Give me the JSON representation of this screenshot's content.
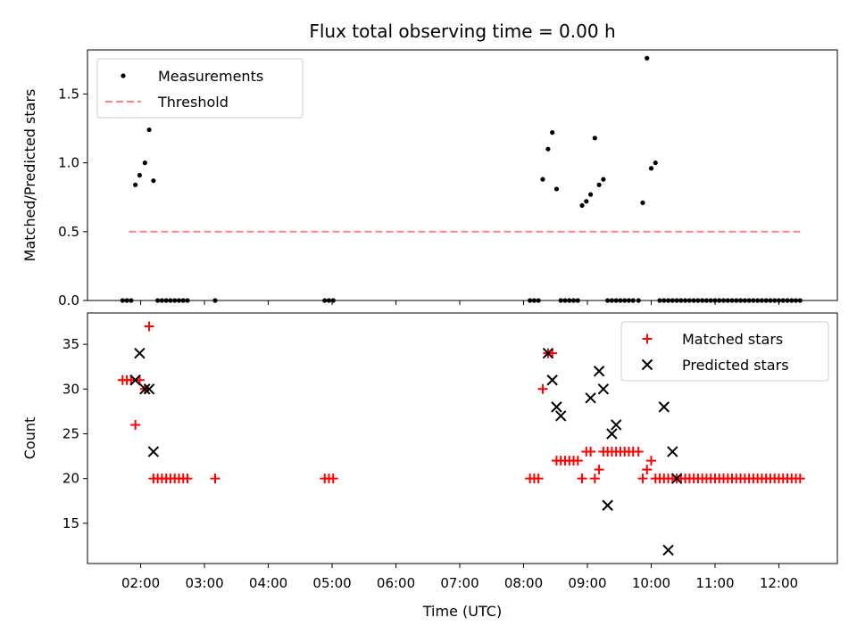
{
  "title": "Flux total observing time = 0.00 h",
  "chart_data": [
    {
      "type": "scatter",
      "ylabel": "Matched/Predicted stars",
      "xlabel": "",
      "ylim": [
        0,
        1.82
      ],
      "yticks": [
        0.0,
        0.5,
        1.0,
        1.5
      ],
      "ytick_labels": [
        "0.0",
        "0.5",
        "1.0",
        "1.5"
      ],
      "legend": {
        "position": "top-left",
        "entries": [
          "Measurements",
          "Threshold"
        ]
      },
      "series": [
        {
          "name": "Measurements",
          "color": "#000000",
          "marker": "dot",
          "x": [
            "01:43",
            "01:47",
            "01:51",
            "01:55",
            "01:59",
            "02:04",
            "02:08",
            "02:12",
            "02:16",
            "02:20",
            "02:24",
            "02:28",
            "02:32",
            "02:36",
            "02:40",
            "02:44",
            "03:10",
            "04:53",
            "04:57",
            "05:01",
            "08:06",
            "08:10",
            "08:14",
            "08:18",
            "08:23",
            "08:27",
            "08:31",
            "08:35",
            "08:39",
            "08:43",
            "08:47",
            "08:51",
            "08:55",
            "08:59",
            "09:03",
            "09:07",
            "09:11",
            "09:15",
            "09:19",
            "09:23",
            "09:27",
            "09:31",
            "09:35",
            "09:39",
            "09:43",
            "09:48",
            "09:52",
            "09:56",
            "10:00",
            "10:04",
            "10:08",
            "10:12",
            "10:16",
            "10:20",
            "10:24",
            "10:28",
            "10:32",
            "10:36",
            "10:40",
            "10:44",
            "10:48",
            "10:52",
            "10:56",
            "11:00",
            "11:04",
            "11:08",
            "11:12",
            "11:16",
            "11:20",
            "11:24",
            "11:28",
            "11:32",
            "11:36",
            "11:40",
            "11:44",
            "11:48",
            "11:52",
            "11:56",
            "12:00",
            "12:04",
            "12:08",
            "12:12",
            "12:16",
            "12:20"
          ],
          "y": [
            0,
            0,
            0,
            0.84,
            0.91,
            1.0,
            1.24,
            0.87,
            0,
            0,
            0,
            0,
            0,
            0,
            0,
            0,
            0,
            0,
            0,
            0,
            0,
            0,
            0,
            0.88,
            1.1,
            1.22,
            0.81,
            0,
            0,
            0,
            0,
            0,
            0.69,
            0.72,
            0.77,
            1.18,
            0.84,
            0.88,
            0,
            0,
            0,
            0,
            0,
            0,
            0,
            0,
            0.71,
            1.76,
            0.96,
            1.0,
            0,
            0,
            0,
            0,
            0,
            0,
            0,
            0,
            0,
            0,
            0,
            0,
            0,
            0,
            0,
            0,
            0,
            0,
            0,
            0,
            0,
            0,
            0,
            0,
            0,
            0,
            0,
            0,
            0,
            0,
            0,
            0,
            0,
            0
          ]
        },
        {
          "name": "Threshold",
          "color": "#ff8080",
          "style": "dashed",
          "x": [
            "01:49",
            "12:20"
          ],
          "y": [
            0.5,
            0.5
          ]
        }
      ]
    },
    {
      "type": "scatter",
      "ylabel": "Count",
      "xlabel": "Time (UTC)",
      "ylim": [
        10.5,
        38.5
      ],
      "yticks": [
        15,
        20,
        25,
        30,
        35
      ],
      "ytick_labels": [
        "15",
        "20",
        "25",
        "30",
        "35"
      ],
      "x_ticks": [
        "02:00",
        "03:00",
        "04:00",
        "05:00",
        "06:00",
        "07:00",
        "08:00",
        "09:00",
        "10:00",
        "11:00",
        "12:00"
      ],
      "xlim": [
        "01:10",
        "12:55"
      ],
      "legend": {
        "position": "top-right",
        "entries": [
          "Matched stars",
          "Predicted stars"
        ]
      },
      "series": [
        {
          "name": "Matched stars",
          "color": "#ff0000",
          "marker": "plus",
          "x": [
            "01:43",
            "01:47",
            "01:51",
            "01:55",
            "01:59",
            "02:04",
            "02:08",
            "02:12",
            "02:16",
            "02:20",
            "02:24",
            "02:28",
            "02:32",
            "02:36",
            "02:40",
            "02:44",
            "03:10",
            "04:53",
            "04:57",
            "05:01",
            "08:06",
            "08:10",
            "08:14",
            "08:18",
            "08:23",
            "08:27",
            "08:31",
            "08:35",
            "08:39",
            "08:43",
            "08:47",
            "08:51",
            "08:55",
            "08:59",
            "09:03",
            "09:07",
            "09:11",
            "09:15",
            "09:19",
            "09:23",
            "09:27",
            "09:31",
            "09:35",
            "09:39",
            "09:43",
            "09:48",
            "09:52",
            "09:56",
            "10:00",
            "10:04",
            "10:08",
            "10:12",
            "10:16",
            "10:20",
            "10:24",
            "10:28",
            "10:32",
            "10:36",
            "10:40",
            "10:44",
            "10:48",
            "10:52",
            "10:56",
            "11:00",
            "11:04",
            "11:08",
            "11:12",
            "11:16",
            "11:20",
            "11:24",
            "11:28",
            "11:32",
            "11:36",
            "11:40",
            "11:44",
            "11:48",
            "11:52",
            "11:56",
            "12:00",
            "12:04",
            "12:08",
            "12:12",
            "12:16",
            "12:20"
          ],
          "y": [
            31,
            31,
            31,
            26,
            31,
            30,
            37,
            20,
            20,
            20,
            20,
            20,
            20,
            20,
            20,
            20,
            20,
            20,
            20,
            20,
            20,
            20,
            20,
            30,
            34,
            34,
            22,
            22,
            22,
            22,
            22,
            22,
            20,
            23,
            23,
            20,
            21,
            23,
            23,
            23,
            23,
            23,
            23,
            23,
            23,
            23,
            20,
            21,
            22,
            20,
            20,
            20,
            20,
            20,
            20,
            20,
            20,
            20,
            20,
            20,
            20,
            20,
            20,
            20,
            20,
            20,
            20,
            20,
            20,
            20,
            20,
            20,
            20,
            20,
            20,
            20,
            20,
            20,
            20,
            20,
            20,
            20,
            20,
            20
          ]
        },
        {
          "name": "Predicted stars",
          "color": "#000000",
          "marker": "x",
          "x": [
            "01:55",
            "01:59",
            "02:04",
            "02:08",
            "02:12",
            "08:23",
            "08:27",
            "08:31",
            "08:35",
            "09:03",
            "09:11",
            "09:15",
            "09:19",
            "09:23",
            "09:27",
            "10:12",
            "10:16",
            "10:20",
            "10:24"
          ],
          "y": [
            31,
            34,
            30,
            30,
            23,
            34,
            31,
            28,
            27,
            29,
            32,
            30,
            17,
            25,
            26,
            28,
            12,
            23,
            20
          ]
        }
      ]
    }
  ]
}
